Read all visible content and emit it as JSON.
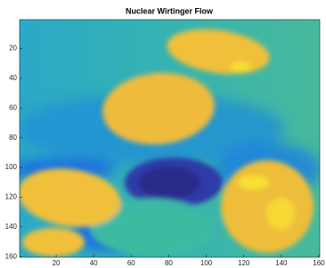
{
  "chart_data": {
    "type": "image",
    "title": "Nuclear Wirtinger Flow",
    "xlim": [
      0.5,
      160.5
    ],
    "ylim": [
      0.5,
      160.5
    ],
    "yreverse": true,
    "xticks": [
      20,
      40,
      60,
      80,
      100,
      120,
      140,
      160
    ],
    "yticks": [
      20,
      40,
      60,
      80,
      100,
      120,
      140,
      160
    ]
  }
}
